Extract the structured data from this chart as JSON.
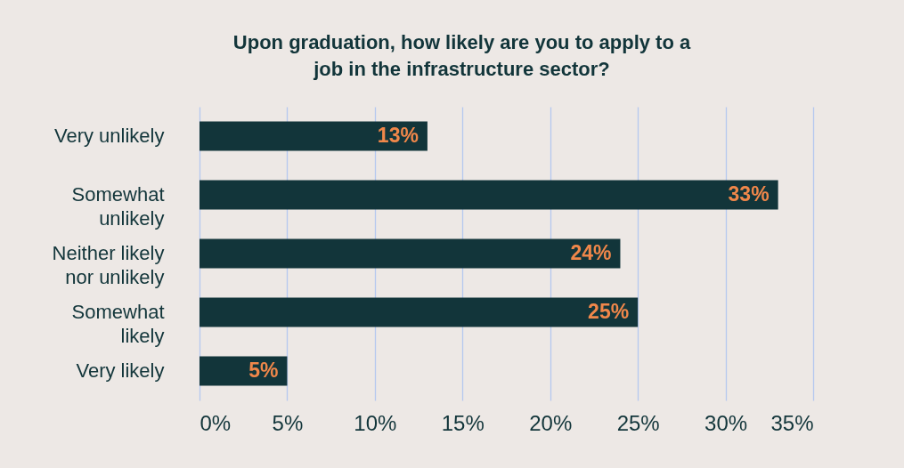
{
  "chart_data": {
    "type": "bar",
    "orientation": "horizontal",
    "title": "Upon graduation, how likely are you to apply to a job in the infrastructure sector?",
    "categories": [
      "Very unlikely",
      "Somewhat unlikely",
      "Neither likely nor unlikely",
      "Somewhat likely",
      "Very likely"
    ],
    "values": [
      13,
      33,
      24,
      25,
      5
    ],
    "value_labels": [
      "13%",
      "33%",
      "24%",
      "25%",
      "5%"
    ],
    "color": "#12353a",
    "grid": "x",
    "xlim": [
      0,
      35
    ],
    "xticks": [
      {
        "value": 0,
        "label": "0%"
      },
      {
        "value": 5,
        "label": "5%"
      },
      {
        "value": 10,
        "label": "10%"
      },
      {
        "value": 15,
        "label": "15%"
      },
      {
        "value": 20,
        "label": "20%"
      },
      {
        "value": 25,
        "label": "25%"
      },
      {
        "value": 30,
        "label": "30%"
      },
      {
        "value": 35,
        "label": "35%"
      }
    ]
  }
}
